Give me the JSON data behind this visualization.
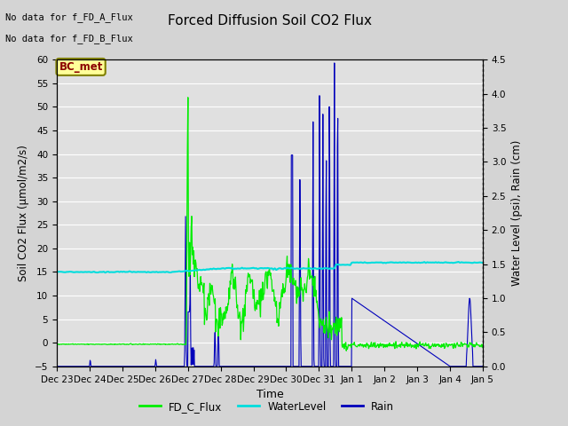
{
  "title": "Forced Diffusion Soil CO2 Flux",
  "xlabel": "Time",
  "ylabel_left": "Soil CO2 Flux (μmol/m2/s)",
  "ylabel_right": "Water Level (psi), Rain (cm)",
  "no_data_text": [
    "No data for f_FD_A_Flux",
    "No data for f_FD_B_Flux"
  ],
  "legend_box_label": "BC_met",
  "ylim_left": [
    -5,
    60
  ],
  "ylim_right": [
    0.0,
    4.5
  ],
  "yticks_left": [
    -5,
    0,
    5,
    10,
    15,
    20,
    25,
    30,
    35,
    40,
    45,
    50,
    55,
    60
  ],
  "yticks_right": [
    0.0,
    0.5,
    1.0,
    1.5,
    2.0,
    2.5,
    3.0,
    3.5,
    4.0,
    4.5
  ],
  "fd_c_flux_color": "#00ee00",
  "water_level_color": "#00dddd",
  "rain_color": "#0000bb",
  "legend_fd": "FD_C_Flux",
  "legend_water": "WaterLevel",
  "legend_rain": "Rain",
  "bg_color": "#d4d4d4",
  "plot_bg_color": "#e0e0e0"
}
